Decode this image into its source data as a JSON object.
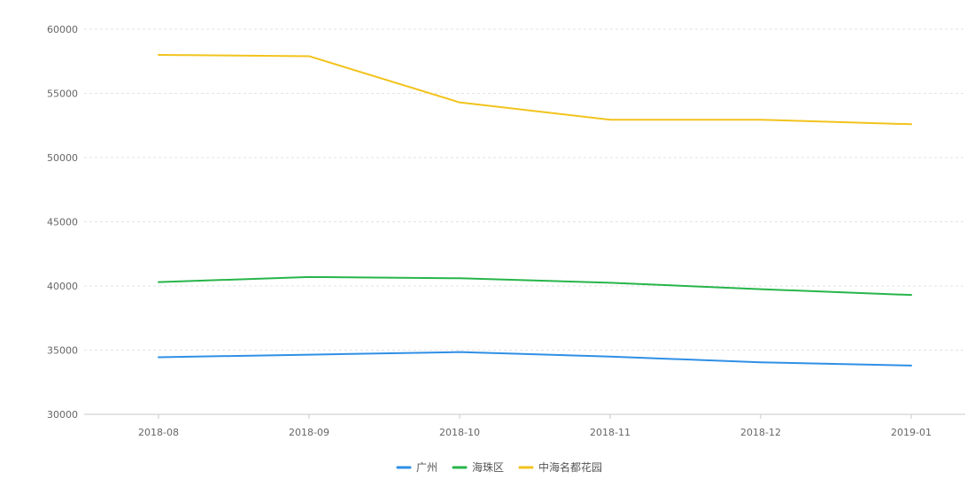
{
  "chart_data": {
    "type": "line",
    "categories": [
      "2018-08",
      "2018-09",
      "2018-10",
      "2018-11",
      "2018-12",
      "2019-01"
    ],
    "y_ticks": [
      30000,
      35000,
      40000,
      45000,
      50000,
      55000,
      60000
    ],
    "ylim": [
      30000,
      60000
    ],
    "grid": true,
    "legend_position": "bottom-center",
    "series": [
      {
        "name": "广州",
        "color": "#2f8fe6",
        "values": [
          34450,
          34650,
          34850,
          34500,
          34050,
          33800
        ]
      },
      {
        "name": "海珠区",
        "color": "#27b54a",
        "values": [
          40300,
          40700,
          40600,
          40250,
          39750,
          39300
        ]
      },
      {
        "name": "中海名都花园",
        "color": "#f2c31c",
        "values": [
          58000,
          57900,
          54300,
          52950,
          52950,
          52600
        ]
      }
    ]
  }
}
